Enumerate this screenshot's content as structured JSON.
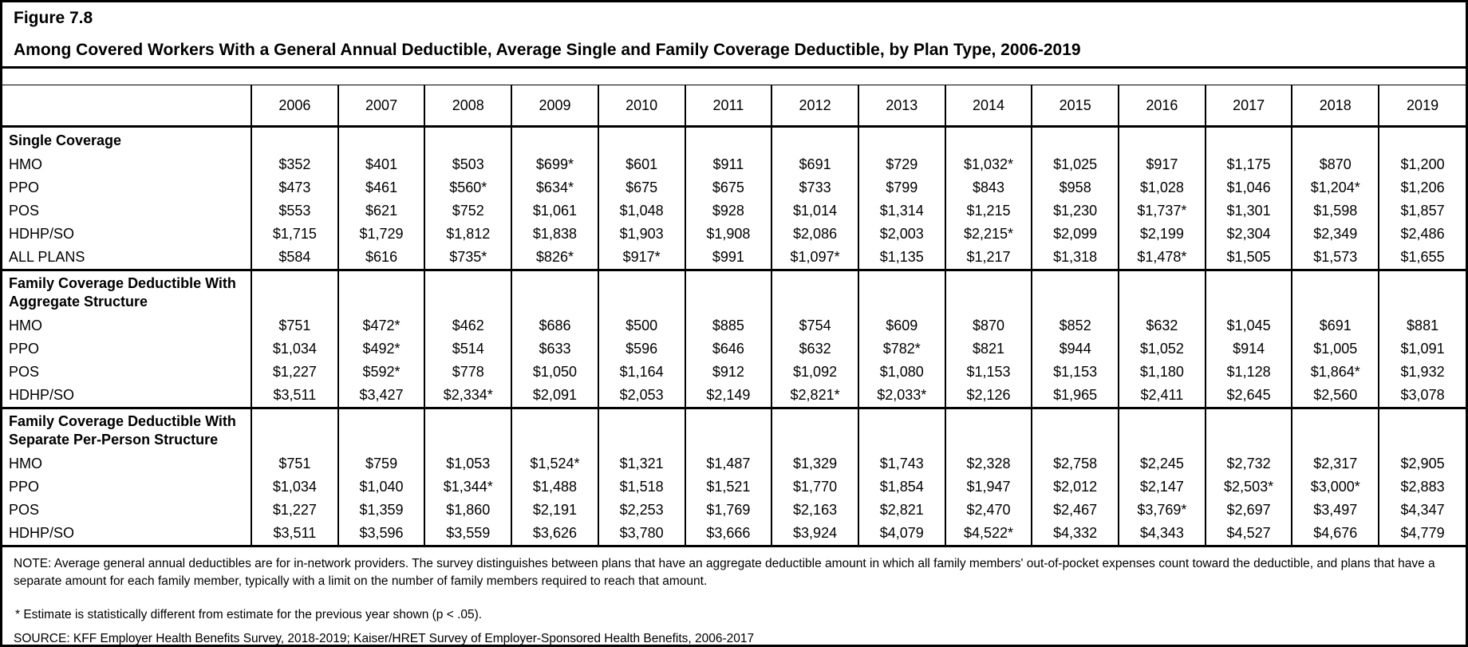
{
  "figure": {
    "label": "Figure 7.8",
    "title": "Among Covered Workers With a General Annual Deductible, Average Single and Family Coverage Deductible, by Plan Type, 2006-2019"
  },
  "chart_data": {
    "type": "table",
    "title": "Figure 7.8",
    "subtitle": "Among Covered Workers With a General Annual Deductible, Average Single and Family Coverage Deductible, by Plan Type, 2006-2019",
    "columns": [
      "2006",
      "2007",
      "2008",
      "2009",
      "2010",
      "2011",
      "2012",
      "2013",
      "2014",
      "2015",
      "2016",
      "2017",
      "2018",
      "2019"
    ],
    "sections": [
      {
        "header_lines": [
          "Single Coverage"
        ],
        "rows": [
          {
            "label": "HMO",
            "values": [
              "$352",
              "$401",
              "$503",
              "$699*",
              "$601",
              "$911",
              "$691",
              "$729",
              "$1,032*",
              "$1,025",
              "$917",
              "$1,175",
              "$870",
              "$1,200"
            ]
          },
          {
            "label": "PPO",
            "values": [
              "$473",
              "$461",
              "$560*",
              "$634*",
              "$675",
              "$675",
              "$733",
              "$799",
              "$843",
              "$958",
              "$1,028",
              "$1,046",
              "$1,204*",
              "$1,206"
            ]
          },
          {
            "label": "POS",
            "values": [
              "$553",
              "$621",
              "$752",
              "$1,061",
              "$1,048",
              "$928",
              "$1,014",
              "$1,314",
              "$1,215",
              "$1,230",
              "$1,737*",
              "$1,301",
              "$1,598",
              "$1,857"
            ]
          },
          {
            "label": "HDHP/SO",
            "values": [
              "$1,715",
              "$1,729",
              "$1,812",
              "$1,838",
              "$1,903",
              "$1,908",
              "$2,086",
              "$2,003",
              "$2,215*",
              "$2,099",
              "$2,199",
              "$2,304",
              "$2,349",
              "$2,486"
            ]
          },
          {
            "label": "ALL PLANS",
            "values": [
              "$584",
              "$616",
              "$735*",
              "$826*",
              "$917*",
              "$991",
              "$1,097*",
              "$1,135",
              "$1,217",
              "$1,318",
              "$1,478*",
              "$1,505",
              "$1,573",
              "$1,655"
            ]
          }
        ]
      },
      {
        "header_lines": [
          "Family Coverage Deductible With",
          "Aggregate Structure"
        ],
        "rows": [
          {
            "label": "HMO",
            "values": [
              "$751",
              "$472*",
              "$462",
              "$686",
              "$500",
              "$885",
              "$754",
              "$609",
              "$870",
              "$852",
              "$632",
              "$1,045",
              "$691",
              "$881"
            ]
          },
          {
            "label": "PPO",
            "values": [
              "$1,034",
              "$492*",
              "$514",
              "$633",
              "$596",
              "$646",
              "$632",
              "$782*",
              "$821",
              "$944",
              "$1,052",
              "$914",
              "$1,005",
              "$1,091"
            ]
          },
          {
            "label": "POS",
            "values": [
              "$1,227",
              "$592*",
              "$778",
              "$1,050",
              "$1,164",
              "$912",
              "$1,092",
              "$1,080",
              "$1,153",
              "$1,153",
              "$1,180",
              "$1,128",
              "$1,864*",
              "$1,932"
            ]
          },
          {
            "label": "HDHP/SO",
            "values": [
              "$3,511",
              "$3,427",
              "$2,334*",
              "$2,091",
              "$2,053",
              "$2,149",
              "$2,821*",
              "$2,033*",
              "$2,126",
              "$1,965",
              "$2,411",
              "$2,645",
              "$2,560",
              "$3,078"
            ]
          }
        ]
      },
      {
        "header_lines": [
          "Family Coverage Deductible With",
          "Separate Per-Person Structure"
        ],
        "rows": [
          {
            "label": "HMO",
            "values": [
              "$751",
              "$759",
              "$1,053",
              "$1,524*",
              "$1,321",
              "$1,487",
              "$1,329",
              "$1,743",
              "$2,328",
              "$2,758",
              "$2,245",
              "$2,732",
              "$2,317",
              "$2,905"
            ]
          },
          {
            "label": "PPO",
            "values": [
              "$1,034",
              "$1,040",
              "$1,344*",
              "$1,488",
              "$1,518",
              "$1,521",
              "$1,770",
              "$1,854",
              "$1,947",
              "$2,012",
              "$2,147",
              "$2,503*",
              "$3,000*",
              "$2,883"
            ]
          },
          {
            "label": "POS",
            "values": [
              "$1,227",
              "$1,359",
              "$1,860",
              "$2,191",
              "$2,253",
              "$1,769",
              "$2,163",
              "$2,821",
              "$2,470",
              "$2,467",
              "$3,769*",
              "$2,697",
              "$3,497",
              "$4,347"
            ]
          },
          {
            "label": "HDHP/SO",
            "values": [
              "$3,511",
              "$3,596",
              "$3,559",
              "$3,626",
              "$3,780",
              "$3,666",
              "$3,924",
              "$4,079",
              "$4,522*",
              "$4,332",
              "$4,343",
              "$4,527",
              "$4,676",
              "$4,779"
            ]
          }
        ]
      }
    ]
  },
  "notes": {
    "note": "NOTE: Average general annual deductibles are for in-network providers. The survey distinguishes between plans that have an aggregate deductible amount in which all family members' out-of-pocket expenses count toward the deductible, and plans that have a separate amount for each family member, typically with a limit on the number of family members required to reach that amount.",
    "footnote": "* Estimate is statistically different from estimate for the previous year shown (p < .05).",
    "source": "SOURCE: KFF Employer Health Benefits Survey, 2018-2019; Kaiser/HRET Survey of Employer-Sponsored Health Benefits, 2006-2017"
  }
}
